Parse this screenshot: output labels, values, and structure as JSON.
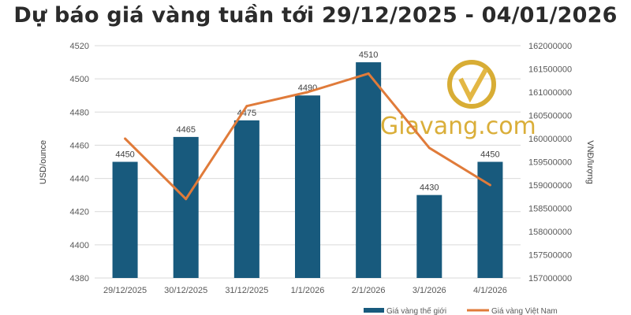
{
  "chart_data": {
    "type": "bar+line",
    "title": "Dự báo giá vàng tuần tới 29/12/2025 - 04/01/2026",
    "categories": [
      "29/12/2025",
      "30/12/2025",
      "31/12/2025",
      "1/1/2026",
      "2/1/2026",
      "3/1/2026",
      "4/1/2026"
    ],
    "series": [
      {
        "name": "Giá vàng thế giới",
        "type": "bar",
        "axis": "left",
        "color": "#185a7d",
        "values": [
          4450,
          4465,
          4475,
          4490,
          4510,
          4430,
          4450
        ],
        "data_labels": true
      },
      {
        "name": "Giá vàng Việt Nam",
        "type": "line",
        "axis": "right",
        "color": "#e07b3a",
        "values": [
          160000000,
          158700000,
          160700000,
          161000000,
          161400000,
          159800000,
          159000000
        ]
      }
    ],
    "ylabel": "USD/ounce",
    "y2label": "VNĐ/lượng",
    "ylim": [
      4380,
      4520
    ],
    "yticks": [
      4380,
      4400,
      4420,
      4440,
      4460,
      4480,
      4500,
      4520
    ],
    "y2lim": [
      157000000,
      162000000
    ],
    "y2ticks": [
      157000000,
      157500000,
      158000000,
      158500000,
      159000000,
      159500000,
      160000000,
      160500000,
      161000000,
      161500000,
      162000000
    ],
    "grid": true,
    "legend": "bottom-right",
    "watermark": "Giavang.com"
  }
}
